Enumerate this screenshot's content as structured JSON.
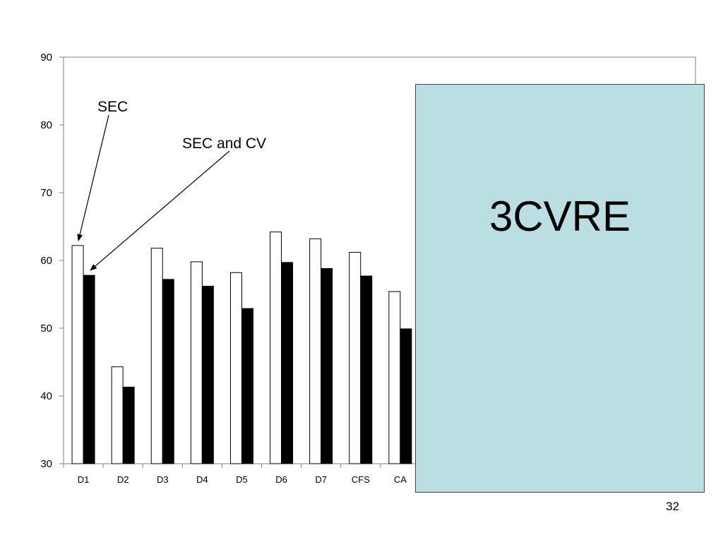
{
  "chart_data": {
    "type": "bar",
    "categories": [
      "D1",
      "D2",
      "D3",
      "D4",
      "D5",
      "D6",
      "D7",
      "CFS",
      "CA"
    ],
    "series": [
      {
        "values": [
          62.2,
          44.3,
          61.8,
          59.8,
          58.2,
          64.2,
          63.2,
          61.2,
          55.4
        ],
        "color": "#ffffff"
      },
      {
        "values": [
          57.8,
          41.3,
          57.2,
          56.2,
          52.9,
          59.7,
          58.8,
          57.7,
          49.9
        ],
        "color": "#000000"
      }
    ],
    "ylim": [
      30,
      90
    ],
    "yticks": [
      30,
      40,
      50,
      60,
      70,
      80,
      90
    ],
    "grid": false,
    "annotations": [
      {
        "text": "SEC",
        "target_series": 0,
        "target_category": "D1"
      },
      {
        "text": "SEC and CV",
        "target_series": 1,
        "target_category": "D1"
      }
    ]
  },
  "overlay": {
    "text": "3CVRE",
    "color": "#b9dfe3"
  },
  "slide": {
    "number": "32"
  }
}
